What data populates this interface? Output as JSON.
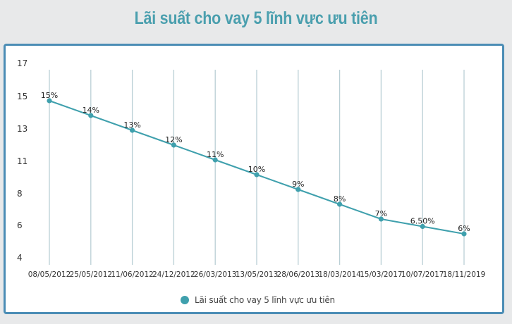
{
  "title": "Lãi suất cho vay 5 lĩnh vực ưu tiên",
  "colors": {
    "background": "#e8e9ea",
    "title": "#4a9fae",
    "card_border": "#4b8db5",
    "series": "#3fa0ad",
    "gridline": "#b9cfd5"
  },
  "legend": {
    "label": "Lãi suất cho vay 5 lĩnh vực ưu tiên"
  },
  "chart_data": {
    "type": "line",
    "title": "Lãi suất cho vay 5 lĩnh vực ưu tiên",
    "xlabel": "",
    "ylabel": "",
    "categories": [
      "08/05/2012",
      "25/05/2012",
      "11/06/2012",
      "24/12/2012",
      "26/03/2013",
      "13/05/2013",
      "28/06/2013",
      "18/03/2014",
      "15/03/2017",
      "10/07/2017",
      "18/11/2019"
    ],
    "series": [
      {
        "name": "Lãi suất cho vay 5 lĩnh vực ưu tiên",
        "values": [
          15,
          14,
          13,
          12,
          11,
          10,
          9,
          8,
          7,
          6.5,
          6
        ],
        "labels": [
          "15%",
          "14%",
          "13%",
          "12%",
          "11%",
          "10%",
          "9%",
          "8%",
          "7%",
          "6.50%",
          "6%"
        ]
      }
    ],
    "y_ticks": [
      "17",
      "15",
      "13",
      "11",
      "8",
      "6",
      "4"
    ],
    "ylim": [
      4,
      17
    ],
    "grid": "vertical",
    "legend_position": "bottom"
  }
}
